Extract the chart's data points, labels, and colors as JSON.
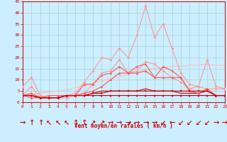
{
  "x": [
    0,
    1,
    2,
    3,
    4,
    5,
    6,
    7,
    8,
    9,
    10,
    11,
    12,
    13,
    14,
    15,
    16,
    17,
    18,
    19,
    20,
    21,
    22,
    23
  ],
  "series": [
    {
      "name": "max_gust_light",
      "color": "#ff9999",
      "values": [
        7,
        11,
        3,
        2,
        2,
        3,
        4,
        9,
        14,
        20,
        19,
        24,
        20,
        30,
        43,
        29,
        35,
        24,
        13,
        8,
        7,
        19,
        7,
        6
      ],
      "marker": "D",
      "markersize": 1.8,
      "linewidth": 0.8
    },
    {
      "name": "avg_wind_light",
      "color": "#ff9999",
      "values": [
        3,
        7,
        2,
        2,
        2,
        2,
        3,
        4,
        8,
        13,
        14,
        19,
        13,
        14,
        18,
        17,
        14,
        11,
        9,
        6,
        7,
        6,
        6,
        6
      ],
      "marker": "D",
      "markersize": 1.8,
      "linewidth": 0.8
    },
    {
      "name": "line_pink_linear",
      "color": "#ffbbbb",
      "values": [
        3,
        3.5,
        4.0,
        4.5,
        5.0,
        5.5,
        6.5,
        7.5,
        8.5,
        9.5,
        10.5,
        11.5,
        12.5,
        13.5,
        14.5,
        15.0,
        15.5,
        16.0,
        16.0,
        16.5,
        16.5,
        17.0,
        16.5,
        16.5
      ],
      "marker": null,
      "markersize": 0,
      "linewidth": 0.8
    },
    {
      "name": "line3_med",
      "color": "#ff5555",
      "values": [
        3,
        4,
        2,
        3,
        3,
        3,
        3,
        8,
        8,
        12,
        13,
        16,
        13,
        16,
        17,
        11,
        16,
        14,
        11,
        5,
        4,
        6,
        3,
        3
      ],
      "marker": "^",
      "markersize": 2.0,
      "linewidth": 0.8
    },
    {
      "name": "line4_med",
      "color": "#ff5555",
      "values": [
        3,
        2,
        2,
        2,
        2,
        3,
        3,
        4,
        5,
        7,
        10,
        13,
        13,
        13,
        14,
        11,
        11,
        11,
        11,
        5,
        4,
        6,
        3,
        3
      ],
      "marker": "^",
      "markersize": 2.0,
      "linewidth": 0.8
    },
    {
      "name": "line5_dark_flat",
      "color": "#cc0000",
      "values": [
        3,
        3,
        2,
        2,
        2,
        3,
        3,
        3,
        4,
        4,
        5,
        5,
        5,
        5,
        5,
        5,
        5,
        5,
        5,
        5,
        5,
        5,
        3,
        3
      ],
      "marker": "s",
      "markersize": 1.5,
      "linewidth": 0.8
    },
    {
      "name": "line6_dark_flat2",
      "color": "#cc0000",
      "values": [
        3,
        3,
        2,
        2,
        2,
        3,
        3,
        3,
        3,
        3,
        3,
        3,
        3,
        3,
        3,
        3,
        3,
        3,
        3,
        3,
        3,
        3,
        3,
        3
      ],
      "marker": "s",
      "markersize": 1.5,
      "linewidth": 0.8
    },
    {
      "name": "line7_dark_flat3",
      "color": "#cc0000",
      "values": [
        3,
        3,
        2,
        2,
        2,
        3,
        3,
        3,
        4,
        5,
        5,
        5,
        5,
        5,
        6,
        5,
        5,
        5,
        4,
        4,
        4,
        5,
        3,
        3
      ],
      "marker": null,
      "markersize": 0,
      "linewidth": 0.8
    }
  ],
  "wind_arrows": [
    "→",
    "↑",
    "↑",
    "↖",
    "↖",
    "↖",
    "↑",
    "↑",
    "↗",
    "↗",
    "→",
    "→",
    "→",
    "→",
    "→",
    "→",
    "↙",
    "←",
    "↙",
    "↙",
    "↙",
    "↙",
    "→",
    "→"
  ],
  "xlabel": "Vent moyen/en rafales ( km/h )",
  "xlim": [
    0,
    23
  ],
  "ylim": [
    0,
    45
  ],
  "yticks": [
    0,
    5,
    10,
    15,
    20,
    25,
    30,
    35,
    40,
    45
  ],
  "xticks": [
    0,
    1,
    2,
    3,
    4,
    5,
    6,
    7,
    8,
    9,
    10,
    11,
    12,
    13,
    14,
    15,
    16,
    17,
    18,
    19,
    20,
    21,
    22,
    23
  ],
  "bg_color": "#cceeff",
  "grid_color": "#99cccc",
  "axis_color": "#cc0000",
  "label_color": "#cc0000",
  "tick_color": "#cc0000"
}
